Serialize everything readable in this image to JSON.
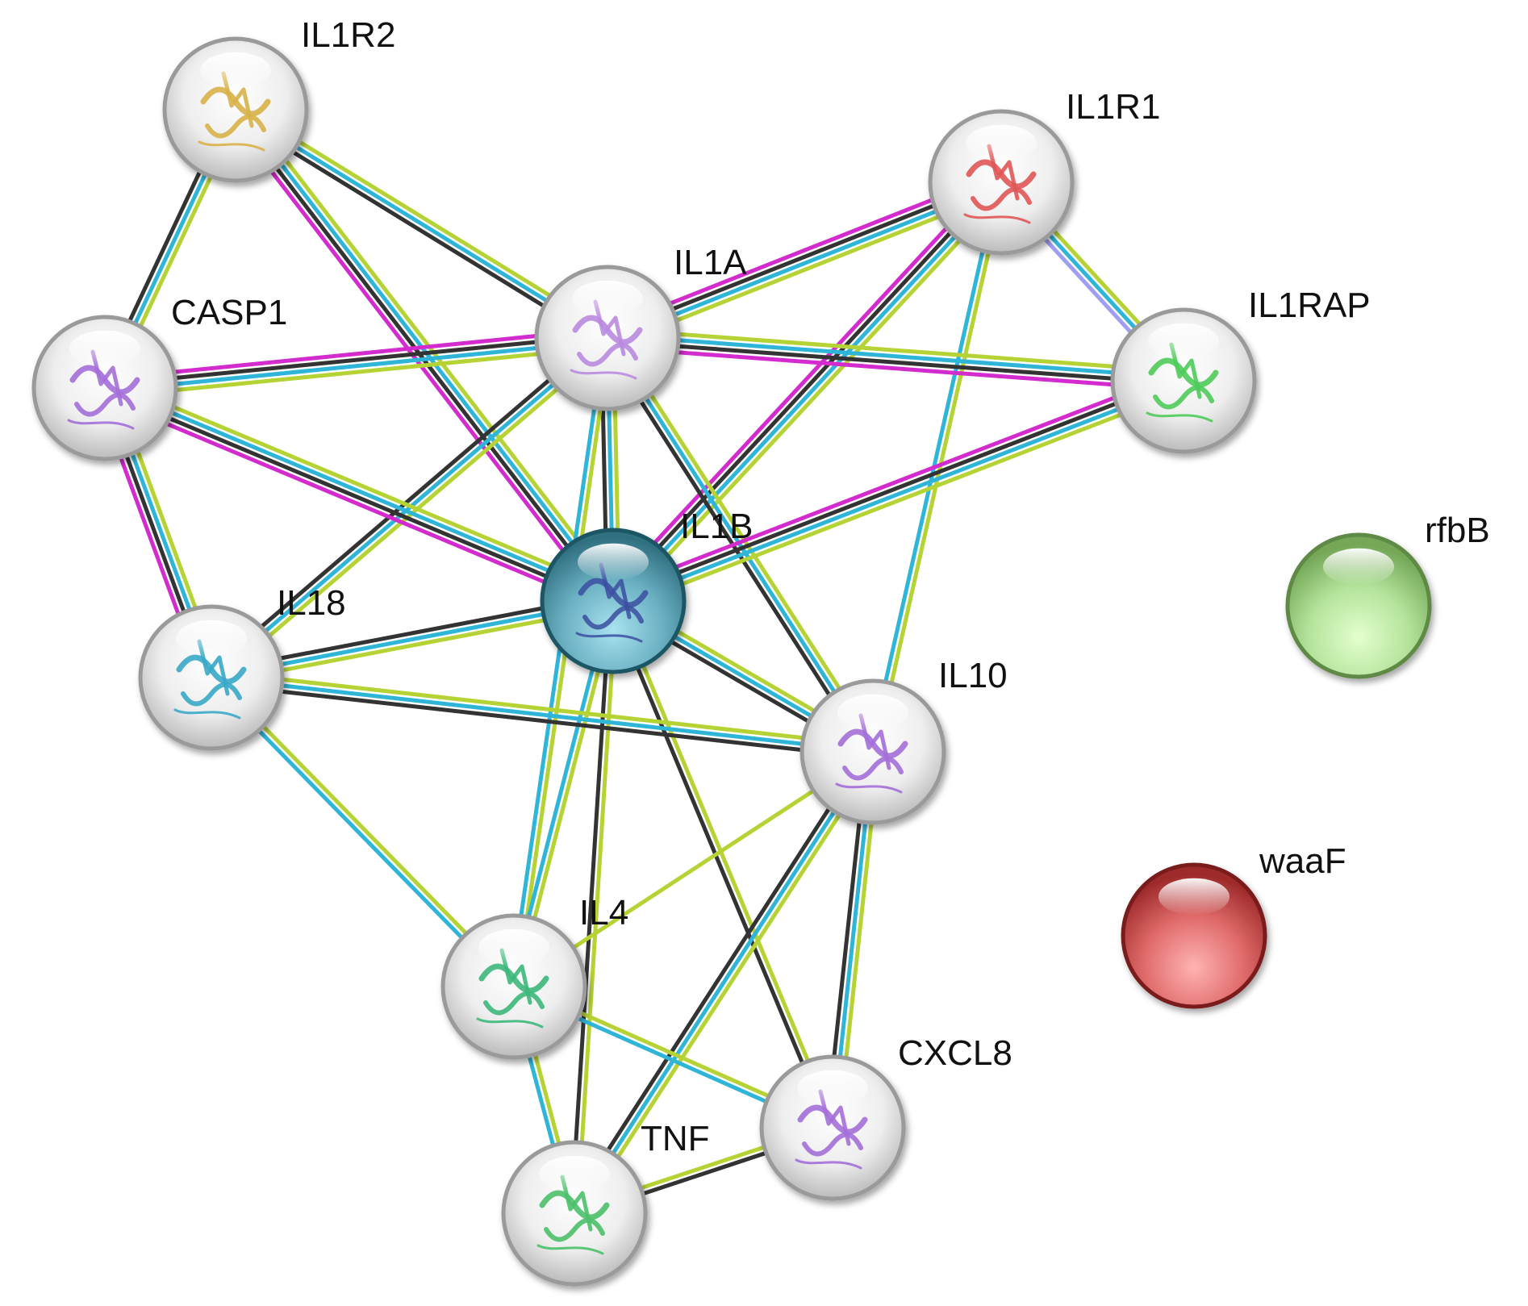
{
  "nodes": [
    {
      "id": "IL1R2",
      "label": "IL1R2",
      "kind": "structure",
      "color": "#d8b24a"
    },
    {
      "id": "IL1R1",
      "label": "IL1R1",
      "kind": "structure",
      "color": "#e05656"
    },
    {
      "id": "IL1A",
      "label": "IL1A",
      "kind": "structure",
      "color": "#b98be0"
    },
    {
      "id": "CASP1",
      "label": "CASP1",
      "kind": "structure",
      "color": "#a46fd8"
    },
    {
      "id": "IL1RAP",
      "label": "IL1RAP",
      "kind": "structure",
      "color": "#4ecb5a"
    },
    {
      "id": "IL1B",
      "label": "IL1B",
      "kind": "query",
      "color": "#5a9cae"
    },
    {
      "id": "rfbB",
      "label": "rfbB",
      "kind": "plain",
      "color": "#9cd27c"
    },
    {
      "id": "IL18",
      "label": "IL18",
      "kind": "structure",
      "color": "#3aa8c8"
    },
    {
      "id": "IL10",
      "label": "IL10",
      "kind": "structure",
      "color": "#a46fd8"
    },
    {
      "id": "waaF",
      "label": "waaF",
      "kind": "plain",
      "color": "#d9534f"
    },
    {
      "id": "IL4",
      "label": "IL4",
      "kind": "structure",
      "color": "#3cb87a"
    },
    {
      "id": "CXCL8",
      "label": "CXCL8",
      "kind": "structure",
      "color": "#a46fd8"
    },
    {
      "id": "TNF",
      "label": "TNF",
      "kind": "structure",
      "color": "#4cc06a"
    }
  ],
  "evidence_colors": {
    "textmining": "#b5d334",
    "database": "#2fb5d8",
    "coexpression": "#333333",
    "experiments": "#d42bcf",
    "homology": "#9f9ef2"
  },
  "edges": [
    {
      "source": "IL1R2",
      "target": "CASP1",
      "evidence": [
        "textmining",
        "database",
        "coexpression"
      ]
    },
    {
      "source": "IL1R2",
      "target": "IL1A",
      "evidence": [
        "textmining",
        "database",
        "coexpression"
      ]
    },
    {
      "source": "IL1R2",
      "target": "IL1B",
      "evidence": [
        "textmining",
        "database",
        "coexpression",
        "experiments"
      ]
    },
    {
      "source": "IL1R1",
      "target": "IL1A",
      "evidence": [
        "textmining",
        "database",
        "coexpression",
        "experiments"
      ]
    },
    {
      "source": "IL1R1",
      "target": "IL1RAP",
      "evidence": [
        "textmining",
        "database",
        "homology"
      ]
    },
    {
      "source": "IL1R1",
      "target": "IL1B",
      "evidence": [
        "textmining",
        "database",
        "coexpression",
        "experiments"
      ]
    },
    {
      "source": "IL1R1",
      "target": "IL10",
      "evidence": [
        "textmining",
        "database"
      ]
    },
    {
      "source": "IL1A",
      "target": "CASP1",
      "evidence": [
        "textmining",
        "database",
        "coexpression",
        "experiments"
      ]
    },
    {
      "source": "IL1A",
      "target": "IL1RAP",
      "evidence": [
        "textmining",
        "database",
        "coexpression",
        "experiments"
      ]
    },
    {
      "source": "IL1A",
      "target": "IL1B",
      "evidence": [
        "textmining",
        "database",
        "coexpression"
      ]
    },
    {
      "source": "IL1A",
      "target": "IL18",
      "evidence": [
        "textmining",
        "database",
        "coexpression"
      ]
    },
    {
      "source": "IL1A",
      "target": "IL10",
      "evidence": [
        "textmining",
        "database",
        "coexpression"
      ]
    },
    {
      "source": "IL1A",
      "target": "IL4",
      "evidence": [
        "textmining",
        "database"
      ]
    },
    {
      "source": "CASP1",
      "target": "IL1B",
      "evidence": [
        "textmining",
        "database",
        "coexpression",
        "experiments"
      ]
    },
    {
      "source": "CASP1",
      "target": "IL18",
      "evidence": [
        "textmining",
        "database",
        "coexpression",
        "experiments"
      ]
    },
    {
      "source": "IL1RAP",
      "target": "IL1B",
      "evidence": [
        "textmining",
        "database",
        "coexpression",
        "experiments"
      ]
    },
    {
      "source": "IL1B",
      "target": "IL18",
      "evidence": [
        "textmining",
        "database",
        "coexpression"
      ]
    },
    {
      "source": "IL1B",
      "target": "IL10",
      "evidence": [
        "textmining",
        "database",
        "coexpression"
      ]
    },
    {
      "source": "IL1B",
      "target": "IL4",
      "evidence": [
        "textmining",
        "database"
      ]
    },
    {
      "source": "IL1B",
      "target": "TNF",
      "evidence": [
        "textmining",
        "coexpression"
      ]
    },
    {
      "source": "IL1B",
      "target": "CXCL8",
      "evidence": [
        "textmining",
        "coexpression"
      ]
    },
    {
      "source": "IL18",
      "target": "IL10",
      "evidence": [
        "textmining",
        "database",
        "coexpression"
      ]
    },
    {
      "source": "IL18",
      "target": "IL4",
      "evidence": [
        "textmining",
        "database"
      ]
    },
    {
      "source": "IL10",
      "target": "IL4",
      "evidence": [
        "textmining"
      ]
    },
    {
      "source": "IL10",
      "target": "TNF",
      "evidence": [
        "textmining",
        "database",
        "coexpression"
      ]
    },
    {
      "source": "IL10",
      "target": "CXCL8",
      "evidence": [
        "textmining",
        "database",
        "coexpression"
      ]
    },
    {
      "source": "IL4",
      "target": "TNF",
      "evidence": [
        "textmining",
        "database"
      ]
    },
    {
      "source": "IL4",
      "target": "CXCL8",
      "evidence": [
        "textmining",
        "database"
      ]
    },
    {
      "source": "TNF",
      "target": "CXCL8",
      "evidence": [
        "textmining",
        "coexpression"
      ]
    }
  ]
}
